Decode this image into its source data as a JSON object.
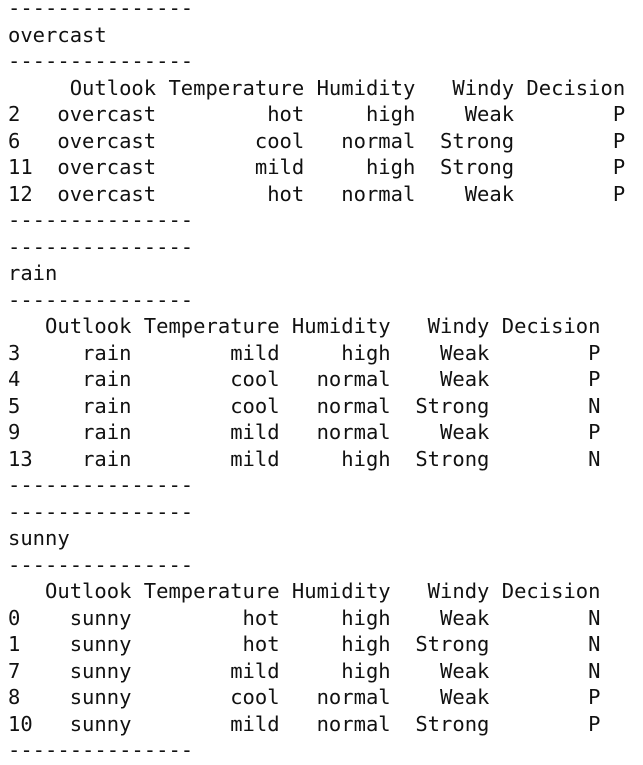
{
  "separator": "---------------",
  "groups": [
    {
      "name": "overcast",
      "columns": [
        "Outlook",
        "Temperature",
        "Humidity",
        "Windy",
        "Decision"
      ],
      "rows": [
        [
          "2",
          "overcast",
          "hot",
          "high",
          "Weak",
          "P"
        ],
        [
          "6",
          "overcast",
          "cool",
          "normal",
          "Strong",
          "P"
        ],
        [
          "11",
          "overcast",
          "mild",
          "high",
          "Strong",
          "P"
        ],
        [
          "12",
          "overcast",
          "hot",
          "normal",
          "Weak",
          "P"
        ]
      ]
    },
    {
      "name": "rain",
      "columns": [
        "Outlook",
        "Temperature",
        "Humidity",
        "Windy",
        "Decision"
      ],
      "rows": [
        [
          "3",
          "rain",
          "mild",
          "high",
          "Weak",
          "P"
        ],
        [
          "4",
          "rain",
          "cool",
          "normal",
          "Weak",
          "P"
        ],
        [
          "5",
          "rain",
          "cool",
          "normal",
          "Strong",
          "N"
        ],
        [
          "9",
          "rain",
          "mild",
          "normal",
          "Weak",
          "P"
        ],
        [
          "13",
          "rain",
          "mild",
          "high",
          "Strong",
          "N"
        ]
      ]
    },
    {
      "name": "sunny",
      "columns": [
        "Outlook",
        "Temperature",
        "Humidity",
        "Windy",
        "Decision"
      ],
      "rows": [
        [
          "0",
          "sunny",
          "hot",
          "high",
          "Weak",
          "N"
        ],
        [
          "1",
          "sunny",
          "hot",
          "high",
          "Strong",
          "N"
        ],
        [
          "7",
          "sunny",
          "mild",
          "high",
          "Weak",
          "N"
        ],
        [
          "8",
          "sunny",
          "cool",
          "normal",
          "Weak",
          "P"
        ],
        [
          "10",
          "sunny",
          "mild",
          "normal",
          "Strong",
          "P"
        ]
      ]
    }
  ]
}
